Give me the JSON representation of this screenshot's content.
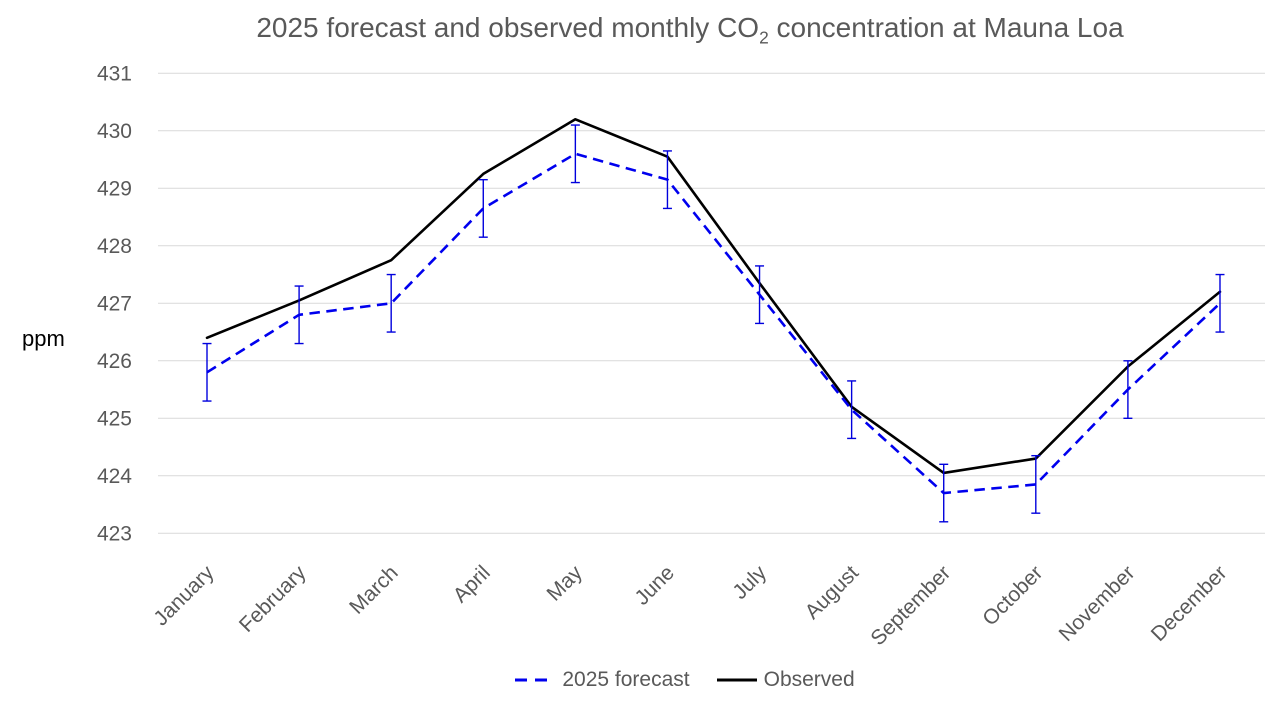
{
  "chart_data": {
    "type": "line",
    "title": "2025 forecast and observed monthly CO2 concentration at Mauna Loa",
    "title_parts": {
      "prefix": "2025 forecast and observed monthly CO",
      "subscript": "2",
      "suffix": " concentration at Mauna Loa"
    },
    "ylabel": "ppm",
    "xlabel": "",
    "categories": [
      "January",
      "February",
      "March",
      "April",
      "May",
      "June",
      "July",
      "August",
      "September",
      "October",
      "November",
      "December"
    ],
    "yticks": [
      431,
      430,
      429,
      428,
      427,
      426,
      425,
      424,
      423
    ],
    "ylim": [
      423,
      431
    ],
    "grid": true,
    "legend_position": "bottom",
    "series": [
      {
        "name": "2025 forecast",
        "style": "dashed",
        "color": "#0000ee",
        "values": [
          425.8,
          426.8,
          427.0,
          428.65,
          429.6,
          429.15,
          427.15,
          425.15,
          423.7,
          423.85,
          425.5,
          427.0
        ],
        "error_plus_minus": 0.5
      },
      {
        "name": "Observed",
        "style": "solid",
        "color": "#000000",
        "values": [
          426.4,
          427.05,
          427.75,
          429.25,
          430.2,
          429.55,
          427.35,
          425.2,
          424.05,
          424.3,
          425.9,
          427.2
        ]
      }
    ],
    "colors": {
      "grid": "#d9d9d9",
      "axis_text": "#595959",
      "ylabel_text": "#000000",
      "error_bar": "#0000dd"
    }
  }
}
